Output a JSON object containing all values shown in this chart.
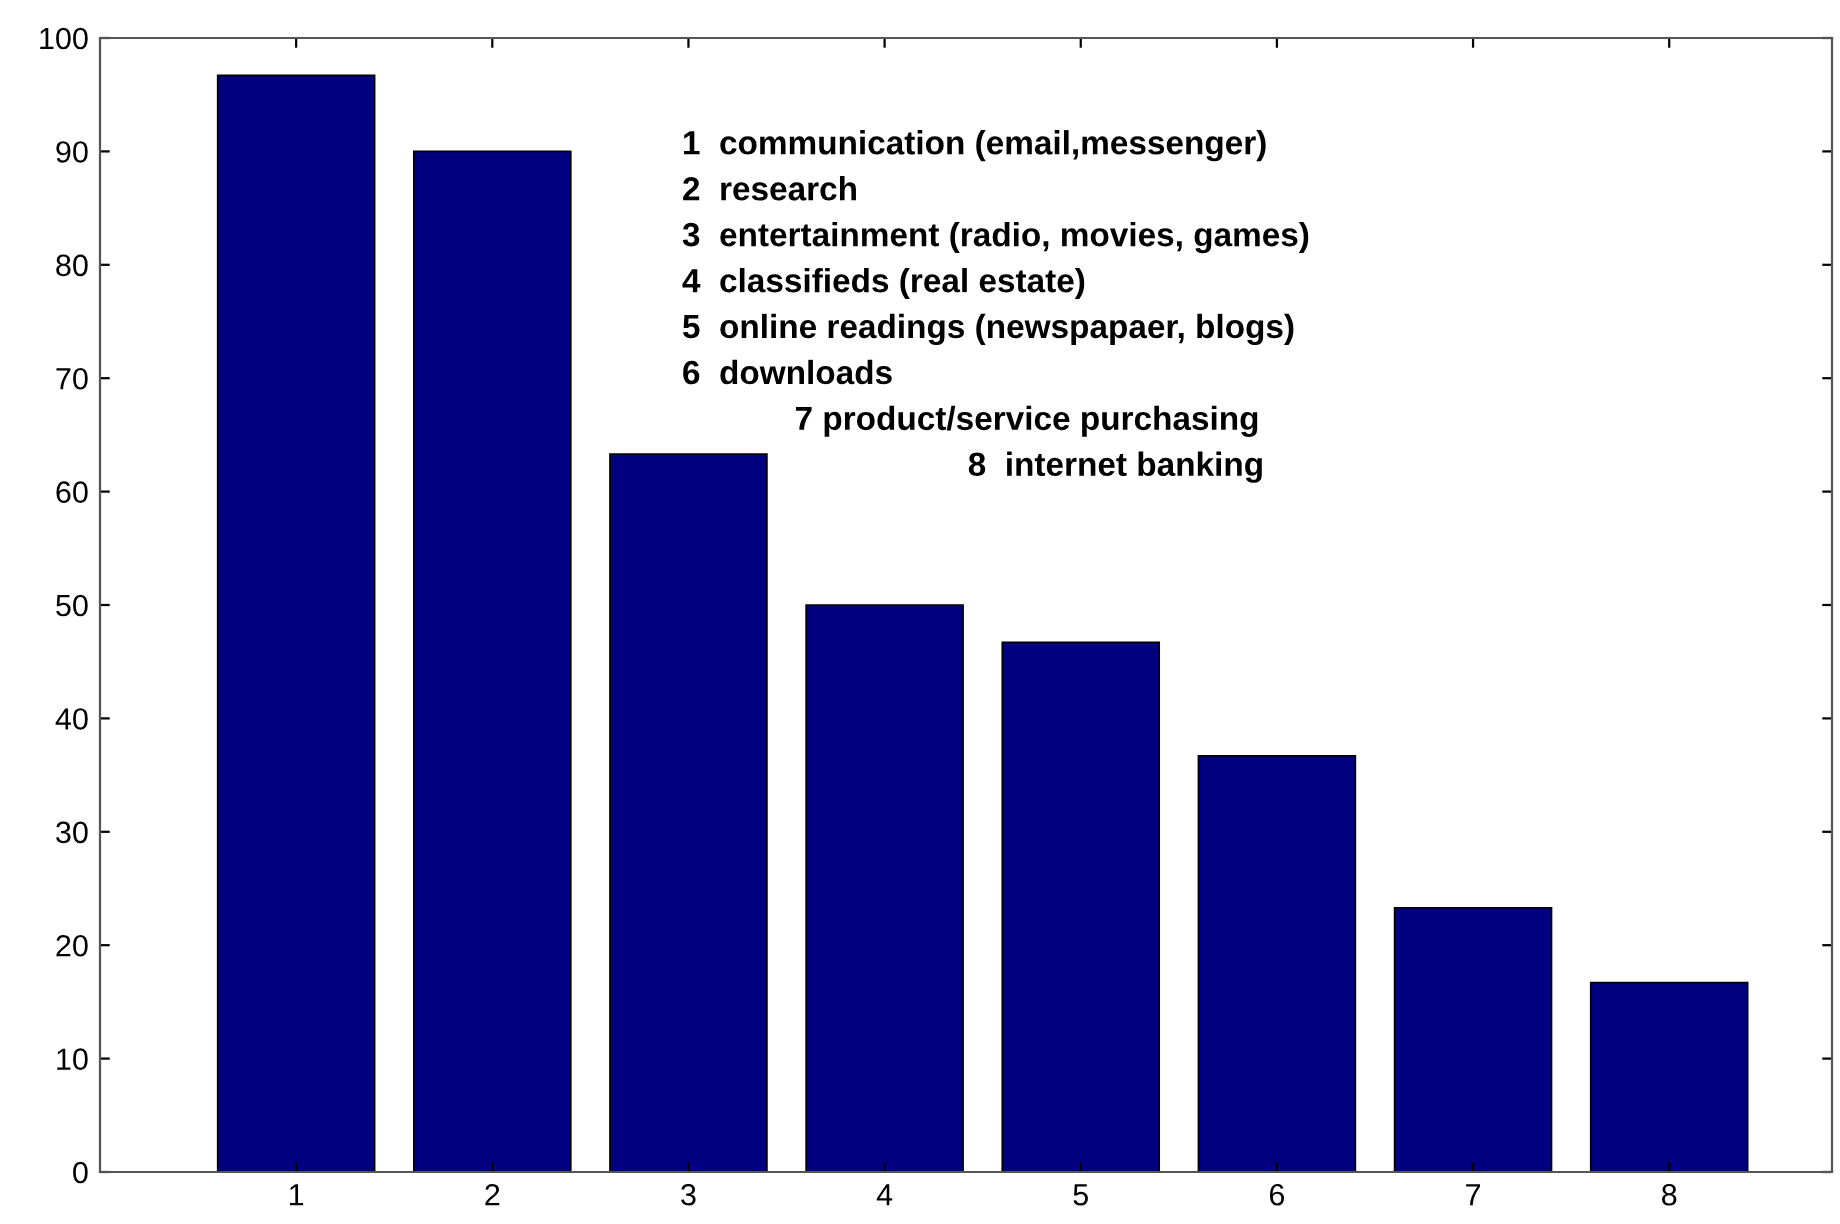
{
  "chart_data": {
    "type": "bar",
    "categories": [
      "1",
      "2",
      "3",
      "4",
      "5",
      "6",
      "7",
      "8"
    ],
    "values": [
      96.7,
      90,
      63.3,
      50,
      46.7,
      36.7,
      23.3,
      16.7
    ],
    "color": "#000080",
    "ylim": [
      0,
      100
    ],
    "yticks": [
      0,
      10,
      20,
      30,
      40,
      50,
      60,
      70,
      80,
      90,
      100
    ],
    "grid": false,
    "annotations": [
      "1  communication (email,messenger)",
      "2  research",
      "3  entertainment (radio, movies, games)",
      "4  classifieds (real estate)",
      "5  online readings (newspapaer, blogs)",
      "6  downloads",
      "7 product/service purchasing",
      "8  internet banking"
    ]
  }
}
